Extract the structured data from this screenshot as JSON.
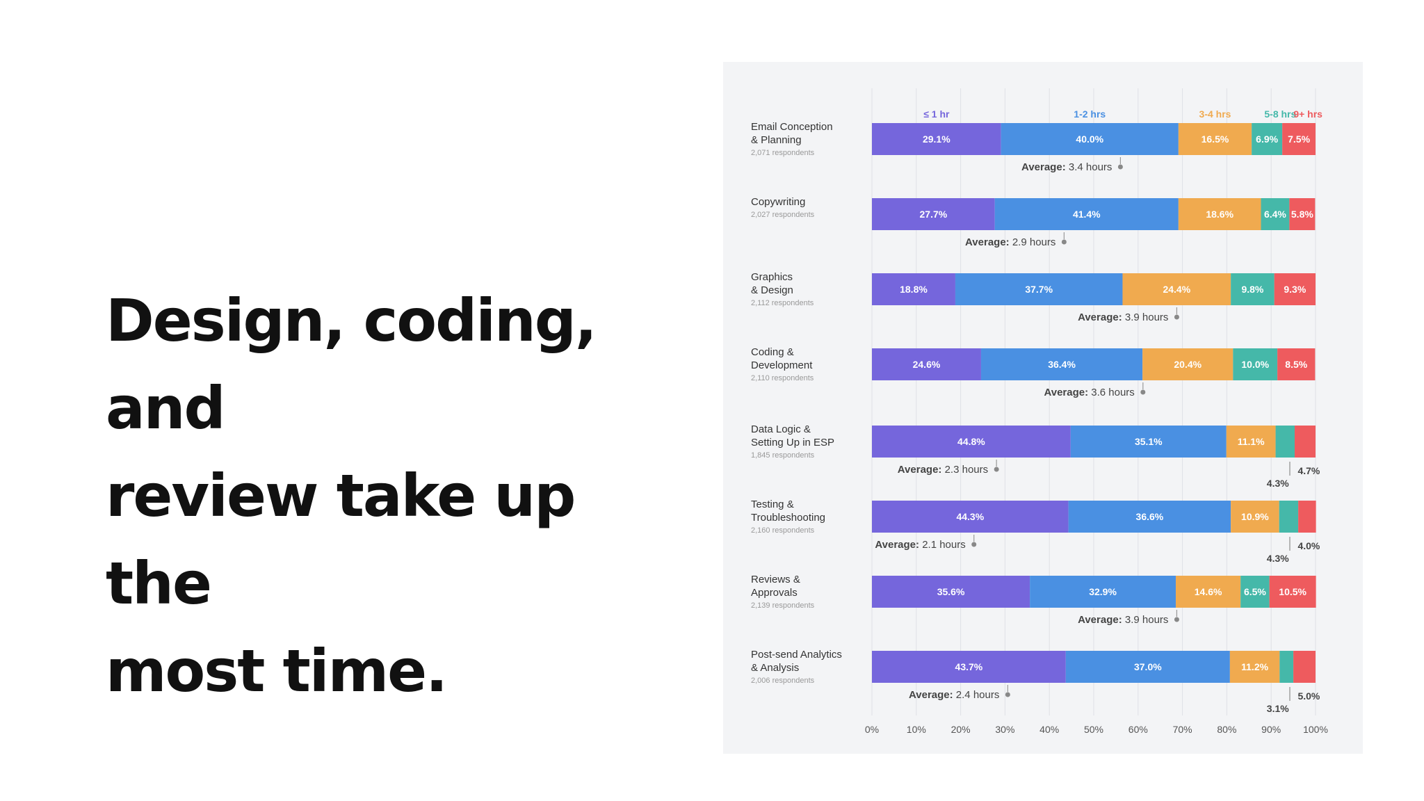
{
  "headline": {
    "lines": [
      "Design, coding, and",
      "review take up the",
      "most time."
    ]
  },
  "colors": {
    "le1hr": "#7566dc",
    "h1_2": "#4a90e2",
    "h3_4": "#f0aa4f",
    "h5_8": "#45b8a9",
    "h9plus": "#ee5b5e",
    "background": "#f3f4f6",
    "grid": "#dfe1e6",
    "label": "#333333",
    "sublabel": "#999999"
  },
  "chart_data": {
    "type": "bar",
    "orientation": "horizontal-stacked",
    "series": [
      {
        "name": "≤ 1 hr",
        "color": "#7566dc",
        "values": [
          29.1,
          27.7,
          18.8,
          24.6,
          44.8,
          44.3,
          35.6,
          43.7
        ],
        "labels": [
          "29.1%",
          "27.7%",
          "18.8%",
          "24.6%",
          "44.8%",
          "44.3%",
          "35.6%",
          "43.7%"
        ]
      },
      {
        "name": "1-2 hrs",
        "color": "#4a90e2",
        "values": [
          40.0,
          41.4,
          37.7,
          36.4,
          35.1,
          36.6,
          32.9,
          37.0
        ],
        "labels": [
          "40.0%",
          "41.4%",
          "37.7%",
          "36.4%",
          "35.1%",
          "36.6%",
          "32.9%",
          "37.0%"
        ]
      },
      {
        "name": "3-4 hrs",
        "color": "#f0aa4f",
        "values": [
          16.5,
          18.6,
          24.4,
          20.4,
          11.1,
          10.9,
          14.6,
          11.2
        ],
        "labels": [
          "16.5%",
          "18.6%",
          "24.4%",
          "20.4%",
          "11.1%",
          "10.9%",
          "14.6%",
          "11.2%"
        ]
      },
      {
        "name": "5-8 hrs",
        "color": "#45b8a9",
        "values": [
          6.9,
          6.4,
          9.8,
          10.0,
          4.3,
          4.3,
          6.5,
          3.1
        ],
        "labels": [
          "6.9%",
          "6.4%",
          "9.8%",
          "10.0%",
          "4.3%",
          "4.3%",
          "6.5%",
          "3.1%"
        ]
      },
      {
        "name": "9+ hrs",
        "color": "#ee5b5e",
        "values": [
          7.5,
          5.8,
          9.3,
          8.5,
          4.7,
          4.0,
          10.5,
          5.0
        ],
        "labels": [
          "7.5%",
          "5.8%",
          "9.3%",
          "8.5%",
          "4.7%",
          "4.0%",
          "10.5%",
          "5.0%"
        ]
      }
    ],
    "categories": [
      {
        "line1": "Email Conception",
        "line2": "& Planning",
        "respondents": "2,071 respondents",
        "average": 3.4,
        "average_label": "Average:",
        "average_value": "3.4 hours"
      },
      {
        "line1": "Copywriting",
        "line2": "",
        "respondents": "2,027 respondents",
        "average": 2.9,
        "average_label": "Average:",
        "average_value": "2.9 hours"
      },
      {
        "line1": "Graphics",
        "line2": "& Design",
        "respondents": "2,112 respondents",
        "average": 3.9,
        "average_label": "Average:",
        "average_value": "3.9 hours"
      },
      {
        "line1": "Coding &",
        "line2": "Development",
        "respondents": "2,110 respondents",
        "average": 3.6,
        "average_label": "Average:",
        "average_value": "3.6 hours"
      },
      {
        "line1": "Data Logic &",
        "line2": "Setting Up in ESP",
        "respondents": "1,845 respondents",
        "average": 2.3,
        "average_label": "Average:",
        "average_value": "2.3 hours"
      },
      {
        "line1": "Testing &",
        "line2": "Troubleshooting",
        "respondents": "2,160 respondents",
        "average": 2.1,
        "average_label": "Average:",
        "average_value": "2.1 hours"
      },
      {
        "line1": "Reviews &",
        "line2": "Approvals",
        "respondents": "2,139 respondents",
        "average": 3.9,
        "average_label": "Average:",
        "average_value": "3.9 hours"
      },
      {
        "line1": "Post-send Analytics",
        "line2": "& Analysis",
        "respondents": "2,006 respondents",
        "average": 2.4,
        "average_label": "Average:",
        "average_value": "2.4 hours"
      }
    ],
    "x_ticks": [
      "0%",
      "10%",
      "20%",
      "30%",
      "40%",
      "50%",
      "60%",
      "70%",
      "80%",
      "90%",
      "100%"
    ],
    "xlim": [
      0,
      100
    ],
    "grid": true,
    "legend": "top"
  }
}
